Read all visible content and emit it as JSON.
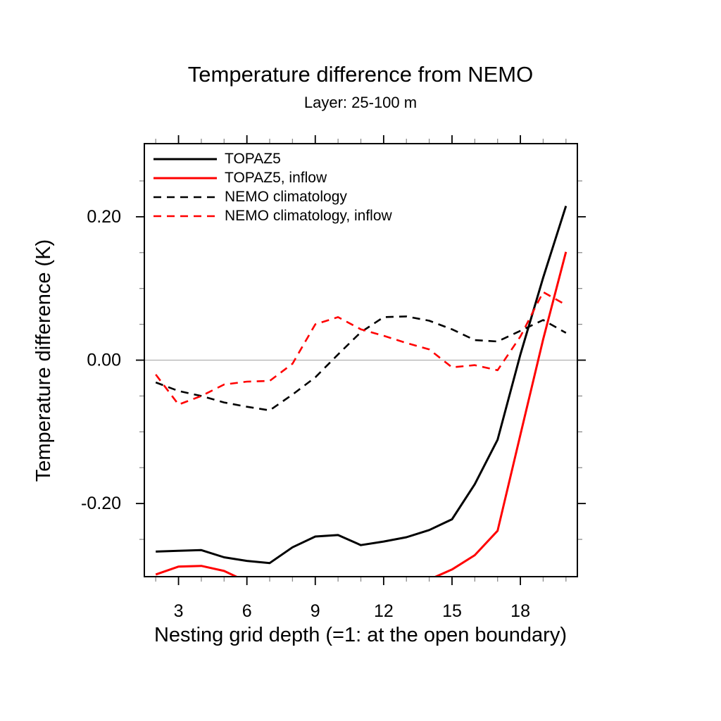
{
  "chart_data": {
    "type": "line",
    "title": "Temperature difference from NEMO",
    "subtitle": "Layer: 25-100 m",
    "xlabel": "Nesting grid depth (=1: at the open boundary)",
    "ylabel": "Temperature difference (K)",
    "xlim": [
      1.5,
      20.5
    ],
    "ylim": [
      -0.302,
      0.302
    ],
    "grid": false,
    "legend_position": "top-left-inside",
    "x_ticks": {
      "values": [
        3,
        6,
        9,
        12,
        15,
        18
      ],
      "labels": [
        "3",
        "6",
        "9",
        "12",
        "15",
        "18"
      ],
      "minor_values": [
        2,
        4,
        5,
        7,
        8,
        10,
        11,
        13,
        14,
        16,
        17,
        19,
        20
      ]
    },
    "y_ticks": {
      "values": [
        0.2,
        0.0,
        -0.2
      ],
      "labels": [
        "0.20",
        "0.00",
        "-0.20"
      ],
      "minor_values": [
        0.25,
        0.15,
        0.1,
        0.05,
        -0.05,
        -0.1,
        -0.15,
        -0.25
      ]
    },
    "reference_line": {
      "y": 0.0,
      "color": "#b0b0b0"
    },
    "x": [
      2,
      3,
      4,
      5,
      6,
      7,
      8,
      9,
      10,
      11,
      12,
      13,
      14,
      15,
      16,
      17,
      18,
      19,
      20
    ],
    "series": [
      {
        "name": "TOPAZ5",
        "color": "#000000",
        "style": "solid",
        "values": [
          -0.267,
          -0.266,
          -0.265,
          -0.275,
          -0.28,
          -0.283,
          -0.261,
          -0.246,
          -0.244,
          -0.258,
          -0.253,
          -0.247,
          -0.237,
          -0.222,
          -0.173,
          -0.111,
          0.008,
          0.115,
          0.215
        ]
      },
      {
        "name": "TOPAZ5, inflow",
        "color": "#ff0000",
        "style": "solid",
        "values": [
          -0.299,
          -0.288,
          -0.287,
          -0.294,
          -0.309,
          -0.318,
          -0.322,
          -0.322,
          -0.32,
          -0.318,
          -0.314,
          -0.31,
          -0.306,
          -0.292,
          -0.272,
          -0.238,
          -0.104,
          0.029,
          0.151
        ]
      },
      {
        "name": "NEMO climatology",
        "color": "#000000",
        "style": "dashed",
        "values": [
          -0.031,
          -0.043,
          -0.05,
          -0.059,
          -0.065,
          -0.07,
          -0.048,
          -0.024,
          0.008,
          0.039,
          0.06,
          0.061,
          0.055,
          0.043,
          0.028,
          0.026,
          0.041,
          0.056,
          0.038
        ]
      },
      {
        "name": "NEMO climatology, inflow",
        "color": "#ff0000",
        "style": "dashed",
        "values": [
          -0.02,
          -0.062,
          -0.05,
          -0.034,
          -0.03,
          -0.029,
          -0.005,
          0.05,
          0.06,
          0.043,
          0.034,
          0.024,
          0.015,
          -0.01,
          -0.007,
          -0.014,
          0.033,
          0.095,
          0.077
        ]
      }
    ],
    "colors": {
      "frame": "#000000",
      "major_tick": "#000000",
      "minor_tick": "#8c8c8c",
      "zero_line": "#b0b0b0",
      "background": "#ffffff"
    }
  }
}
